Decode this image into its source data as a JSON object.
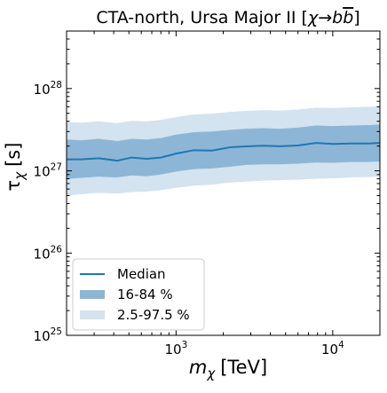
{
  "chart_data": {
    "type": "area",
    "title": "CTA-north, Ursa Major II [χ→bb̄]",
    "title_parts": {
      "prefix": "CTA-north, Ursa Major II [",
      "chi": "χ",
      "arrow": "→",
      "b1": "b",
      "b2": "b",
      "suffix": "]"
    },
    "xlabel": "m_χ [TeV]",
    "xlabel_parts": {
      "m": "m",
      "sub": "χ",
      "unit": "[TeV]"
    },
    "ylabel": "τ_χ [s]",
    "ylabel_parts": {
      "tau": "τ",
      "sub": "χ",
      "unit": "[s]"
    },
    "x_scale": "log",
    "y_scale": "log",
    "xlim": [
      200,
      20000
    ],
    "ylim": [
      1e+25,
      5e+28
    ],
    "x_ticks": [
      {
        "value": 1000,
        "base": "10",
        "exp": "3"
      },
      {
        "value": 10000,
        "base": "10",
        "exp": "4"
      }
    ],
    "y_ticks": [
      {
        "value": 1e+25,
        "base": "10",
        "exp": "25"
      },
      {
        "value": 1e+26,
        "base": "10",
        "exp": "26"
      },
      {
        "value": 1e+27,
        "base": "10",
        "exp": "27"
      },
      {
        "value": 1e+28,
        "base": "10",
        "exp": "28"
      }
    ],
    "grid": false,
    "legend_position": "lower-left",
    "colors": {
      "median": "#1f77b4",
      "band_68": "#8db6d6",
      "band_95": "#d3e3f0"
    },
    "x": [
      200,
      250,
      320,
      420,
      520,
      650,
      800,
      1000,
      1300,
      1700,
      2200,
      2800,
      3600,
      4600,
      6000,
      7800,
      10000,
      13000,
      17000,
      20000
    ],
    "series": [
      {
        "name": "Median",
        "kind": "line",
        "values": [
          1.38e+27,
          1.38e+27,
          1.42e+27,
          1.33e+27,
          1.45e+27,
          1.4e+27,
          1.45e+27,
          1.62e+27,
          1.78e+27,
          1.76e+27,
          1.93e+27,
          1.98e+27,
          2.02e+27,
          1.99e+27,
          2.03e+27,
          2.18e+27,
          2.12e+27,
          2.15e+27,
          2.15e+27,
          2.18e+27
        ]
      },
      {
        "name": "16-84 %",
        "kind": "band",
        "lower": [
          8e+26,
          8.2e+26,
          8.5e+26,
          8.3e+26,
          8.8e+26,
          8.6e+26,
          9e+26,
          9.8e+26,
          1.05e+27,
          1.07e+27,
          1.12e+27,
          1.18e+27,
          1.2e+27,
          1.2e+27,
          1.22e+27,
          1.26e+27,
          1.25e+27,
          1.28e+27,
          1.28e+27,
          1.3e+27
        ],
        "upper": [
          2.4e+27,
          2.35e+27,
          2.45e+27,
          2.3e+27,
          2.45e+27,
          2.4e+27,
          2.5e+27,
          2.75e+27,
          2.95e+27,
          3e+27,
          3.15e+27,
          3.25e+27,
          3.3e+27,
          3.25e+27,
          3.35e+27,
          3.55e+27,
          3.5e+27,
          3.55e+27,
          3.6e+27,
          3.65e+27
        ]
      },
      {
        "name": "2.5-97.5 %",
        "kind": "band",
        "lower": [
          5e+26,
          5.2e+26,
          5.4e+26,
          5.3e+26,
          5.5e+26,
          5.6e+26,
          5.8e+26,
          6.2e+26,
          6.6e+26,
          6.8e+26,
          7.2e+26,
          7.4e+26,
          7.6e+26,
          7.7e+26,
          7.8e+26,
          8e+26,
          8.1e+26,
          8.3e+26,
          8.4e+26,
          8.5e+26
        ],
        "upper": [
          3.9e+27,
          3.85e+27,
          4e+27,
          3.8e+27,
          4.05e+27,
          4e+27,
          4.15e+27,
          4.5e+27,
          4.85e+27,
          4.95e+27,
          5.2e+27,
          5.35e+27,
          5.45e+27,
          5.4e+27,
          5.55e+27,
          5.85e+27,
          5.8e+27,
          5.9e+27,
          6e+27,
          6.1e+27
        ]
      }
    ]
  }
}
